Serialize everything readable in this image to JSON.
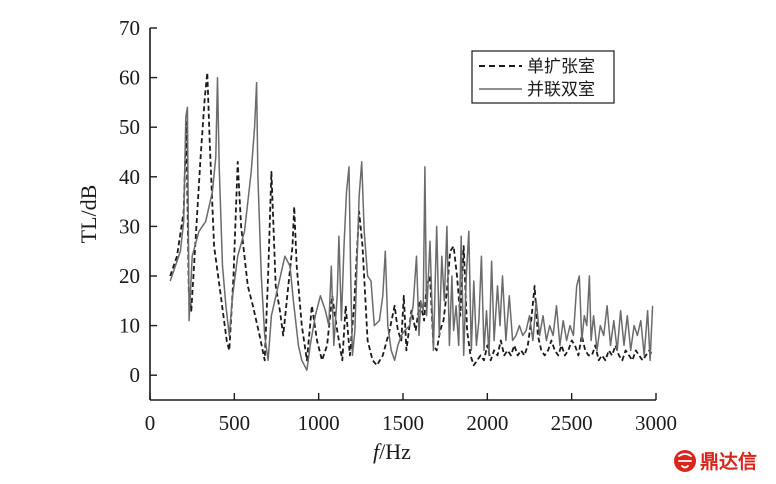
{
  "chart_data": {
    "type": "line",
    "title": "",
    "xlabel_italic": "f",
    "xlabel_rest": "/Hz",
    "ylabel": "TL/dB",
    "xlim": [
      0,
      3000
    ],
    "ylim": [
      -5,
      70
    ],
    "xticks": [
      0,
      500,
      1000,
      1500,
      2000,
      2500,
      3000
    ],
    "yticks": [
      0,
      10,
      20,
      30,
      40,
      50,
      60,
      70
    ],
    "grid": false,
    "legend_position": "top-right",
    "series": [
      {
        "name": "单扩张室",
        "style": "dashed",
        "color": "#1a1a1a",
        "points": [
          [
            120,
            20
          ],
          [
            160,
            24
          ],
          [
            200,
            33
          ],
          [
            215,
            51
          ],
          [
            230,
            17
          ],
          [
            245,
            13
          ],
          [
            270,
            27
          ],
          [
            300,
            44
          ],
          [
            325,
            56
          ],
          [
            340,
            61
          ],
          [
            355,
            46
          ],
          [
            380,
            26
          ],
          [
            420,
            16
          ],
          [
            455,
            7
          ],
          [
            470,
            5
          ],
          [
            495,
            20
          ],
          [
            520,
            43
          ],
          [
            540,
            30
          ],
          [
            580,
            18
          ],
          [
            610,
            14
          ],
          [
            650,
            8
          ],
          [
            680,
            3
          ],
          [
            700,
            20
          ],
          [
            720,
            41
          ],
          [
            745,
            18
          ],
          [
            770,
            13
          ],
          [
            790,
            8
          ],
          [
            820,
            18
          ],
          [
            845,
            26
          ],
          [
            855,
            34
          ],
          [
            870,
            22
          ],
          [
            900,
            10
          ],
          [
            930,
            3
          ],
          [
            960,
            14
          ],
          [
            990,
            7
          ],
          [
            1020,
            3
          ],
          [
            1050,
            6
          ],
          [
            1080,
            16
          ],
          [
            1110,
            9
          ],
          [
            1140,
            3
          ],
          [
            1160,
            14
          ],
          [
            1185,
            4
          ],
          [
            1210,
            14
          ],
          [
            1240,
            33
          ],
          [
            1260,
            26
          ],
          [
            1290,
            7
          ],
          [
            1320,
            3
          ],
          [
            1345,
            2
          ],
          [
            1380,
            4
          ],
          [
            1420,
            9
          ],
          [
            1450,
            14
          ],
          [
            1470,
            9
          ],
          [
            1490,
            7
          ],
          [
            1505,
            16
          ],
          [
            1520,
            5
          ],
          [
            1550,
            13
          ],
          [
            1575,
            9
          ],
          [
            1600,
            15
          ],
          [
            1625,
            11
          ],
          [
            1640,
            18
          ],
          [
            1660,
            20
          ],
          [
            1680,
            6
          ],
          [
            1700,
            5
          ],
          [
            1720,
            9
          ],
          [
            1740,
            11
          ],
          [
            1760,
            17
          ],
          [
            1780,
            25
          ],
          [
            1800,
            26
          ],
          [
            1820,
            20
          ],
          [
            1840,
            12
          ],
          [
            1860,
            26
          ],
          [
            1880,
            9
          ],
          [
            1900,
            4
          ],
          [
            1920,
            2
          ],
          [
            1940,
            3
          ],
          [
            1960,
            4
          ],
          [
            1980,
            3
          ],
          [
            2000,
            6
          ],
          [
            2020,
            3
          ],
          [
            2040,
            5
          ],
          [
            2060,
            4
          ],
          [
            2080,
            7
          ],
          [
            2100,
            4
          ],
          [
            2120,
            5
          ],
          [
            2140,
            4
          ],
          [
            2160,
            6
          ],
          [
            2180,
            4
          ],
          [
            2200,
            5
          ],
          [
            2220,
            4
          ],
          [
            2240,
            6
          ],
          [
            2260,
            11
          ],
          [
            2280,
            18
          ],
          [
            2300,
            8
          ],
          [
            2320,
            5
          ],
          [
            2340,
            4
          ],
          [
            2360,
            5
          ],
          [
            2380,
            7
          ],
          [
            2400,
            5
          ],
          [
            2420,
            4
          ],
          [
            2440,
            6
          ],
          [
            2460,
            4
          ],
          [
            2480,
            5
          ],
          [
            2500,
            7
          ],
          [
            2520,
            6
          ],
          [
            2540,
            4
          ],
          [
            2560,
            8
          ],
          [
            2580,
            5
          ],
          [
            2600,
            4
          ],
          [
            2620,
            4
          ],
          [
            2640,
            6
          ],
          [
            2660,
            3
          ],
          [
            2680,
            4
          ],
          [
            2700,
            3
          ],
          [
            2720,
            5
          ],
          [
            2740,
            4
          ],
          [
            2760,
            6
          ],
          [
            2780,
            4
          ],
          [
            2800,
            3
          ],
          [
            2820,
            5
          ],
          [
            2840,
            4
          ],
          [
            2860,
            3
          ],
          [
            2880,
            5
          ],
          [
            2900,
            4
          ],
          [
            2920,
            3
          ],
          [
            2940,
            4
          ],
          [
            2960,
            5
          ],
          [
            2980,
            4
          ]
        ]
      },
      {
        "name": "并联双室",
        "style": "solid",
        "color": "#6b6b6b",
        "points": [
          [
            120,
            19
          ],
          [
            150,
            22
          ],
          [
            180,
            25
          ],
          [
            200,
            31
          ],
          [
            212,
            52
          ],
          [
            222,
            54
          ],
          [
            232,
            11
          ],
          [
            250,
            24
          ],
          [
            290,
            29
          ],
          [
            330,
            31
          ],
          [
            370,
            37
          ],
          [
            390,
            44
          ],
          [
            400,
            60
          ],
          [
            410,
            42
          ],
          [
            430,
            22
          ],
          [
            450,
            14
          ],
          [
            470,
            8
          ],
          [
            490,
            16
          ],
          [
            520,
            24
          ],
          [
            560,
            29
          ],
          [
            600,
            41
          ],
          [
            620,
            50
          ],
          [
            632,
            59
          ],
          [
            640,
            40
          ],
          [
            660,
            20
          ],
          [
            680,
            8
          ],
          [
            700,
            3
          ],
          [
            720,
            12
          ],
          [
            760,
            18
          ],
          [
            800,
            24
          ],
          [
            830,
            22
          ],
          [
            850,
            15
          ],
          [
            880,
            6
          ],
          [
            900,
            3
          ],
          [
            930,
            1
          ],
          [
            950,
            6
          ],
          [
            980,
            12
          ],
          [
            1010,
            16
          ],
          [
            1040,
            13
          ],
          [
            1060,
            10
          ],
          [
            1075,
            22
          ],
          [
            1090,
            6
          ],
          [
            1110,
            16
          ],
          [
            1120,
            28
          ],
          [
            1135,
            11
          ],
          [
            1150,
            26
          ],
          [
            1165,
            37
          ],
          [
            1180,
            42
          ],
          [
            1190,
            20
          ],
          [
            1200,
            4
          ],
          [
            1215,
            9
          ],
          [
            1240,
            36
          ],
          [
            1255,
            43
          ],
          [
            1270,
            29
          ],
          [
            1290,
            20
          ],
          [
            1310,
            19
          ],
          [
            1330,
            10
          ],
          [
            1360,
            11
          ],
          [
            1380,
            16
          ],
          [
            1395,
            25
          ],
          [
            1410,
            10
          ],
          [
            1430,
            5
          ],
          [
            1450,
            3
          ],
          [
            1470,
            6
          ],
          [
            1490,
            8
          ],
          [
            1510,
            9
          ],
          [
            1540,
            10
          ],
          [
            1560,
            14
          ],
          [
            1580,
            24
          ],
          [
            1595,
            8
          ],
          [
            1605,
            15
          ],
          [
            1620,
            13
          ],
          [
            1630,
            42
          ],
          [
            1640,
            12
          ],
          [
            1660,
            27
          ],
          [
            1680,
            5
          ],
          [
            1700,
            30
          ],
          [
            1715,
            8
          ],
          [
            1730,
            24
          ],
          [
            1745,
            15
          ],
          [
            1760,
            30
          ],
          [
            1775,
            6
          ],
          [
            1790,
            20
          ],
          [
            1800,
            9
          ],
          [
            1815,
            14
          ],
          [
            1830,
            6
          ],
          [
            1845,
            28
          ],
          [
            1860,
            4
          ],
          [
            1875,
            20
          ],
          [
            1890,
            29
          ],
          [
            1905,
            5
          ],
          [
            1920,
            19
          ],
          [
            1935,
            6
          ],
          [
            1950,
            11
          ],
          [
            1965,
            24
          ],
          [
            1980,
            5
          ],
          [
            1995,
            13
          ],
          [
            2010,
            4
          ],
          [
            2025,
            23
          ],
          [
            2040,
            7
          ],
          [
            2060,
            18
          ],
          [
            2075,
            10
          ],
          [
            2090,
            20
          ],
          [
            2110,
            7
          ],
          [
            2130,
            16
          ],
          [
            2150,
            7
          ],
          [
            2170,
            8
          ],
          [
            2190,
            10
          ],
          [
            2210,
            8
          ],
          [
            2230,
            9
          ],
          [
            2250,
            12
          ],
          [
            2270,
            7
          ],
          [
            2290,
            15
          ],
          [
            2310,
            8
          ],
          [
            2330,
            12
          ],
          [
            2350,
            7
          ],
          [
            2370,
            10
          ],
          [
            2390,
            8
          ],
          [
            2410,
            14
          ],
          [
            2430,
            6
          ],
          [
            2450,
            11
          ],
          [
            2470,
            7
          ],
          [
            2490,
            10
          ],
          [
            2510,
            8
          ],
          [
            2530,
            18
          ],
          [
            2545,
            20
          ],
          [
            2560,
            7
          ],
          [
            2575,
            12
          ],
          [
            2590,
            10
          ],
          [
            2605,
            20
          ],
          [
            2615,
            7
          ],
          [
            2630,
            12
          ],
          [
            2650,
            5
          ],
          [
            2670,
            10
          ],
          [
            2690,
            8
          ],
          [
            2710,
            14
          ],
          [
            2730,
            6
          ],
          [
            2750,
            11
          ],
          [
            2770,
            5
          ],
          [
            2790,
            13
          ],
          [
            2810,
            6
          ],
          [
            2830,
            12
          ],
          [
            2850,
            5
          ],
          [
            2870,
            10
          ],
          [
            2890,
            8
          ],
          [
            2910,
            11
          ],
          [
            2930,
            4
          ],
          [
            2950,
            13
          ],
          [
            2965,
            3
          ],
          [
            2980,
            14
          ]
        ]
      }
    ]
  },
  "watermark": {
    "logo_text": "鼎达信",
    "color": "#d9251c"
  }
}
